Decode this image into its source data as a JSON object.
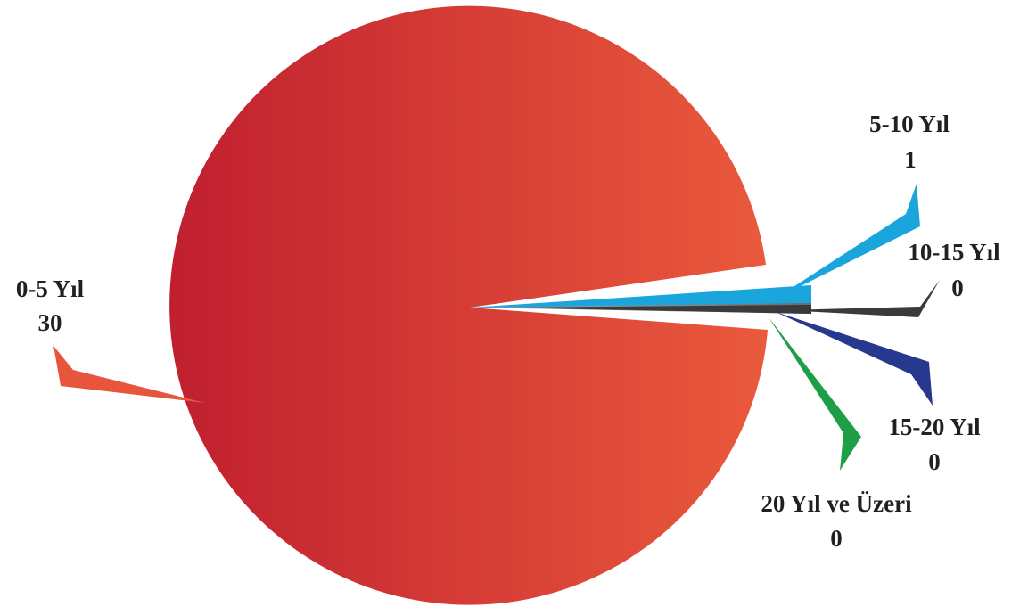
{
  "chart_data": {
    "type": "pie",
    "slices": [
      {
        "name": "0-5 Yıl",
        "value": 30,
        "value_label": "30",
        "color": "#d4353a"
      },
      {
        "name": "5-10 Yıl",
        "value": 1,
        "value_label": "1",
        "color": "#1aa6dc"
      },
      {
        "name": "10-15 Yıl",
        "value": 0,
        "value_label": "0",
        "color": "#3a3a3d"
      },
      {
        "name": "15-20 Yıl",
        "value": 0,
        "value_label": "0",
        "color": "#27398f"
      },
      {
        "name": "20 Yıl ve Üzeri",
        "value": 0,
        "value_label": "0",
        "color": "#1f9e48"
      }
    ],
    "gradient": {
      "from": "#c01f2f",
      "to": "#ea5a3c"
    },
    "legend": "none"
  }
}
